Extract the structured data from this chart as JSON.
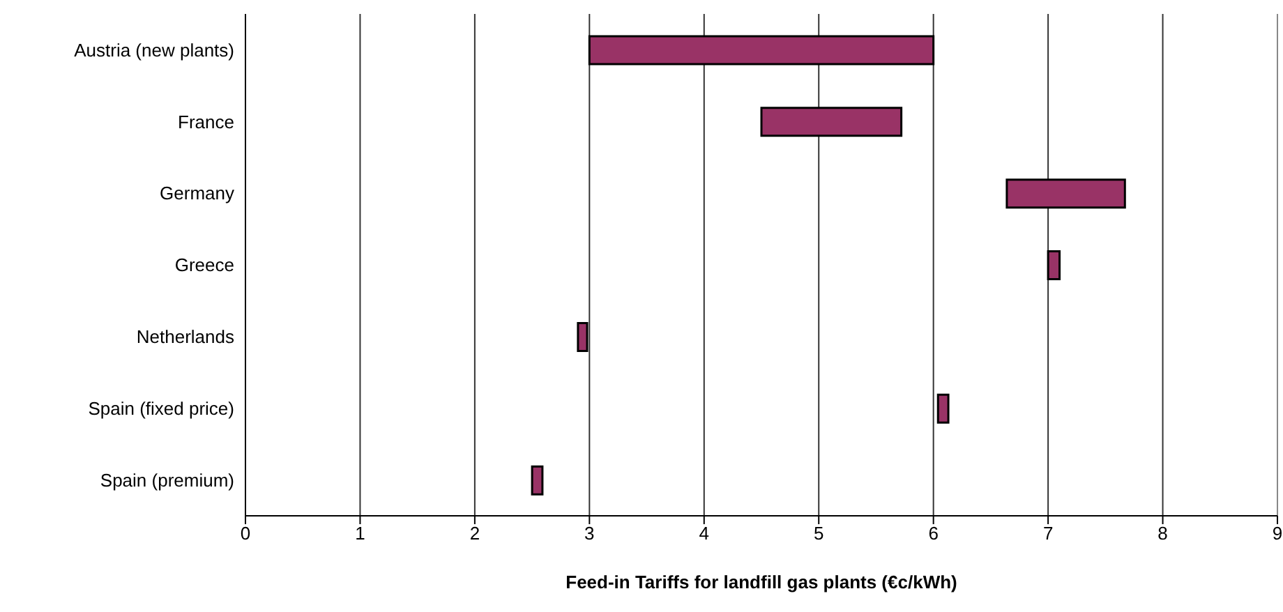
{
  "chart_data": {
    "type": "bar",
    "orientation": "horizontal",
    "categories": [
      "Austria (new plants)",
      "France",
      "Germany",
      "Greece",
      "Netherlands",
      "Spain (fixed price)",
      "Spain (premium)"
    ],
    "base": [
      3,
      4.5,
      6.64,
      7.0,
      2.9,
      6.04,
      2.5
    ],
    "values": [
      3,
      1.22,
      1.03,
      0.1,
      0.08,
      0.09,
      0.09
    ],
    "color": "#993366",
    "xlabel": "Feed-in Tariffs for landfill gas plants (€c/kWh)",
    "xlim": [
      0,
      9
    ],
    "xticks": [
      0,
      1,
      2,
      3,
      4,
      5,
      6,
      7,
      8,
      9
    ],
    "grid": "x"
  }
}
